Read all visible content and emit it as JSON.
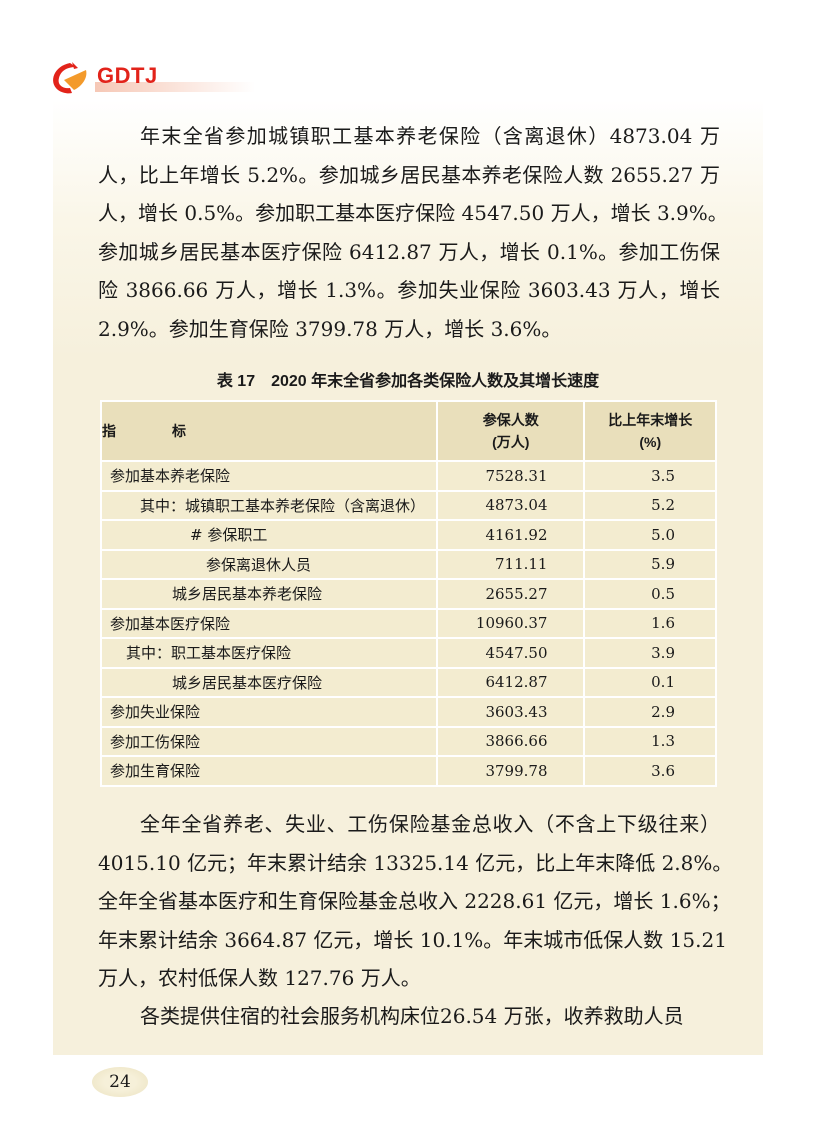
{
  "header": {
    "logo_text": "GDTJ",
    "logo_colors": {
      "red": "#e2231a",
      "orange": "#f39a2b"
    }
  },
  "paragraph1": {
    "lines": [
      "年末全省参加城镇职工基本养老保险（含离退休）4873.04 万",
      "人，比上年增长 5.2%。参加城乡居民基本养老保险人数 2655.27 万",
      "人，增长 0.5%。参加职工基本医疗保险 4547.50 万人，增长 3.9%。",
      "参加城乡居民基本医疗保险 6412.87 万人，增长 0.1%。参加工伤保",
      "险 3866.66 万人，增长 1.3%。参加失业保险 3603.43 万人，增长",
      "2.9%。参加生育保险 3799.78 万人，增长 3.6%。"
    ]
  },
  "table": {
    "caption": "表 17　2020 年末全省参加各类保险人数及其增长速度",
    "headers": {
      "indicator": "指　　　　标",
      "count_line1": "参保人数",
      "count_line2": "(万人)",
      "growth_line1": "比上年末增长",
      "growth_line2": "(%)"
    },
    "rows": [
      {
        "label": "参加基本养老保险",
        "indent": 0,
        "value": "7528.31",
        "growth": "3.5"
      },
      {
        "label": "其中：城镇职工基本养老保险（含离退休）",
        "indent": 1,
        "value": "4873.04",
        "growth": "5.2"
      },
      {
        "label": "# 参保职工",
        "indent": 3,
        "value": "4161.92",
        "growth": "5.0"
      },
      {
        "label": "参保离退休人员",
        "indent": 4,
        "value": "711.11",
        "growth": "5.9"
      },
      {
        "label": "城乡居民基本养老保险",
        "indent": 2,
        "value": "2655.27",
        "growth": "0.5"
      },
      {
        "label": "参加基本医疗保险",
        "indent": 0,
        "value": "10960.37",
        "growth": "1.6"
      },
      {
        "label": "其中：职工基本医疗保险",
        "indent": 5,
        "value": "4547.50",
        "growth": "3.9"
      },
      {
        "label": "城乡居民基本医疗保险",
        "indent": 6,
        "value": "6412.87",
        "growth": "0.1"
      },
      {
        "label": "参加失业保险",
        "indent": 0,
        "value": "3603.43",
        "growth": "2.9"
      },
      {
        "label": "参加工伤保险",
        "indent": 0,
        "value": "3866.66",
        "growth": "1.3"
      },
      {
        "label": "参加生育保险",
        "indent": 0,
        "value": "3799.78",
        "growth": "3.6"
      }
    ]
  },
  "paragraph2": {
    "lines": [
      "全年全省养老、失业、工伤保险基金总收入（不含上下级往来）",
      "4015.10 亿元；年末累计结余 13325.14 亿元，比上年末降低 2.8%。",
      "全年全省基本医疗和生育保险基金总收入 2228.61 亿元，增长 1.6%；",
      "年末累计结余 3664.87 亿元，增长 10.1%。年末城市低保人数 15.21",
      "万人，农村低保人数 127.76 万人。"
    ]
  },
  "paragraph3": {
    "lines": [
      "各类提供住宿的社会服务机构床位26.54 万张，收养救助人员"
    ]
  },
  "footer": {
    "page_number": "24"
  }
}
